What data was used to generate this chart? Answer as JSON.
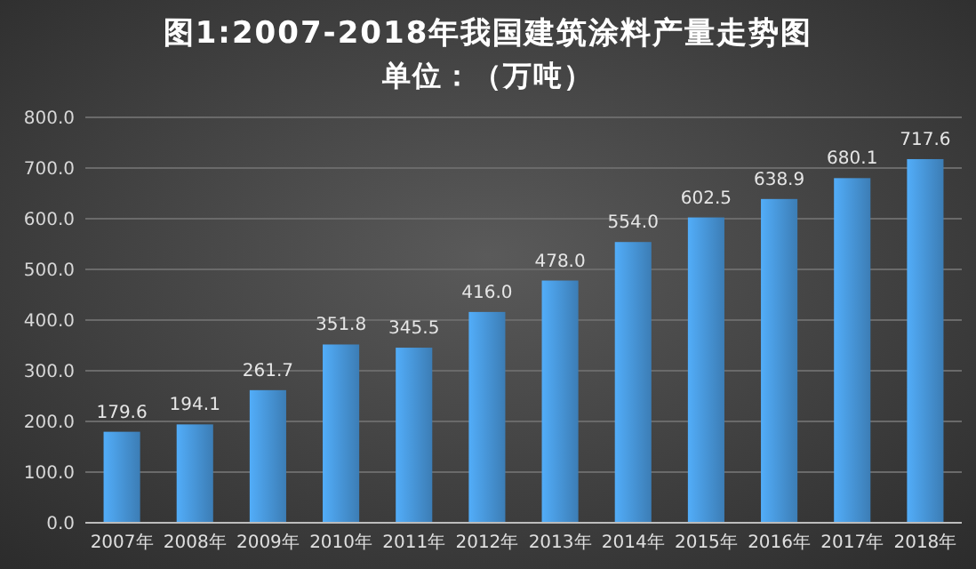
{
  "chart_data": {
    "type": "bar",
    "title": "图1:2007-2018年我国建筑涂料产量走势图",
    "subtitle": "单位：（万吨）",
    "categories": [
      "2007年",
      "2008年",
      "2009年",
      "2010年",
      "2011年",
      "2012年",
      "2013年",
      "2014年",
      "2015年",
      "2016年",
      "2017年",
      "2018年"
    ],
    "values": [
      179.6,
      194.1,
      261.7,
      351.8,
      345.5,
      416.0,
      478.0,
      554.0,
      602.5,
      638.9,
      680.1,
      717.6
    ],
    "value_labels": [
      "179.6",
      "194.1",
      "261.7",
      "351.8",
      "345.5",
      "416.0",
      "478.0",
      "554.0",
      "602.5",
      "638.9",
      "680.1",
      "717.6"
    ],
    "color": "#4a9be0",
    "ylim": [
      0,
      800
    ],
    "yticks": [
      {
        "value": 0,
        "label": "0.0"
      },
      {
        "value": 100,
        "label": "100.0"
      },
      {
        "value": 200,
        "label": "200.0"
      },
      {
        "value": 300,
        "label": "300.0"
      },
      {
        "value": 400,
        "label": "400.0"
      },
      {
        "value": 500,
        "label": "500.0"
      },
      {
        "value": 600,
        "label": "600.0"
      },
      {
        "value": 700,
        "label": "700.0"
      },
      {
        "value": 800,
        "label": "800.0"
      }
    ],
    "grid": "y"
  }
}
